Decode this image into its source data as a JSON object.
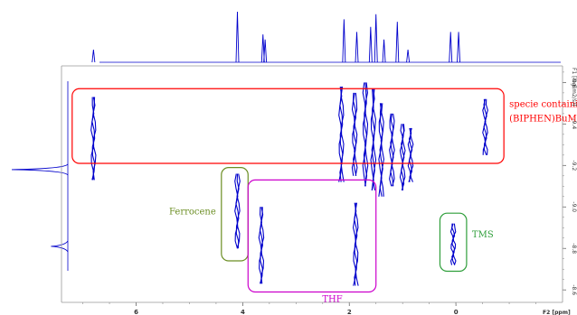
{
  "chart_data": {
    "type": "2D NMR (DOSY) plot",
    "x_axis": {
      "label": "F2 [ppm]",
      "range": [
        7.4,
        -2.0
      ],
      "reversed": true,
      "ticks": [
        {
          "value": 6,
          "label": "6"
        },
        {
          "value": 4,
          "label": "4"
        },
        {
          "value": 2,
          "label": "2"
        },
        {
          "value": 0,
          "label": "0"
        }
      ]
    },
    "y_axis": {
      "label": "F1 [log(m2/s)]",
      "range": [
        -9.68,
        -8.54
      ],
      "position": "right",
      "ticks": [
        {
          "value": -9.6,
          "label": "-9.6"
        },
        {
          "value": -9.4,
          "label": "-9.4"
        },
        {
          "value": -9.2,
          "label": "-9.2"
        },
        {
          "value": -9.0,
          "label": "-9.0"
        },
        {
          "value": -8.8,
          "label": "-8.8"
        },
        {
          "value": -8.6,
          "label": "-8.6"
        }
      ]
    },
    "top_1d_spectrum_peaks_ppm": [
      {
        "x": 6.8,
        "h": 0.25
      },
      {
        "x": 4.1,
        "h": 1.0
      },
      {
        "x": 3.62,
        "h": 0.55
      },
      {
        "x": 3.58,
        "h": 0.45
      },
      {
        "x": 2.1,
        "h": 0.85
      },
      {
        "x": 1.86,
        "h": 0.6
      },
      {
        "x": 1.6,
        "h": 0.7
      },
      {
        "x": 1.5,
        "h": 0.95
      },
      {
        "x": 1.35,
        "h": 0.45
      },
      {
        "x": 1.1,
        "h": 0.8
      },
      {
        "x": 0.9,
        "h": 0.25
      },
      {
        "x": 0.1,
        "h": 0.6
      },
      {
        "x": -0.05,
        "h": 0.6
      }
    ],
    "left_1d_projection_peaks": [
      {
        "y": -9.18,
        "h": 1.0
      },
      {
        "y": -8.81,
        "h": 0.3
      }
    ],
    "cross_peaks": [
      {
        "x": 6.8,
        "y_top": -9.53,
        "y_bottom": -9.13
      },
      {
        "x": 2.15,
        "y_top": -9.58,
        "y_bottom": -9.12
      },
      {
        "x": 1.9,
        "y_top": -9.55,
        "y_bottom": -9.15
      },
      {
        "x": 1.7,
        "y_top": -9.6,
        "y_bottom": -9.1
      },
      {
        "x": 1.55,
        "y_top": -9.57,
        "y_bottom": -9.08
      },
      {
        "x": 1.4,
        "y_top": -9.5,
        "y_bottom": -9.05
      },
      {
        "x": 1.2,
        "y_top": -9.45,
        "y_bottom": -9.1
      },
      {
        "x": 1.0,
        "y_top": -9.4,
        "y_bottom": -9.08
      },
      {
        "x": 0.85,
        "y_top": -9.38,
        "y_bottom": -9.12
      },
      {
        "x": -0.55,
        "y_top": -9.52,
        "y_bottom": -9.25
      },
      {
        "x": 4.1,
        "y_top": -9.16,
        "y_bottom": -8.8
      },
      {
        "x": 3.65,
        "y_top": -9.0,
        "y_bottom": -8.63
      },
      {
        "x": 1.88,
        "y_top": -9.02,
        "y_bottom": -8.62
      },
      {
        "x": 0.05,
        "y_top": -8.92,
        "y_bottom": -8.72
      }
    ],
    "annotations": [
      {
        "text_lines": [
          "specie containing",
          "(BIPHEN)BuMgLi"
        ],
        "color": "#ff0000",
        "box": {
          "x1": 7.2,
          "x2": -0.9,
          "y1": -9.57,
          "y2": -9.21
        }
      },
      {
        "text_lines": [
          "Ferrocene"
        ],
        "color": "#6b8e23",
        "box": {
          "x1": 4.4,
          "x2": 3.9,
          "y1": -9.19,
          "y2": -8.74
        }
      },
      {
        "text_lines": [
          "THF"
        ],
        "color": "#cc00cc",
        "box": {
          "x1": 3.9,
          "x2": 1.5,
          "y1": -9.13,
          "y2": -8.59
        }
      },
      {
        "text_lines": [
          "TMS"
        ],
        "color": "#2e9e3a",
        "box": {
          "x1": 0.3,
          "x2": -0.2,
          "y1": -8.97,
          "y2": -8.69
        }
      }
    ],
    "spectrum_color": "#0000cc",
    "grid": false
  }
}
